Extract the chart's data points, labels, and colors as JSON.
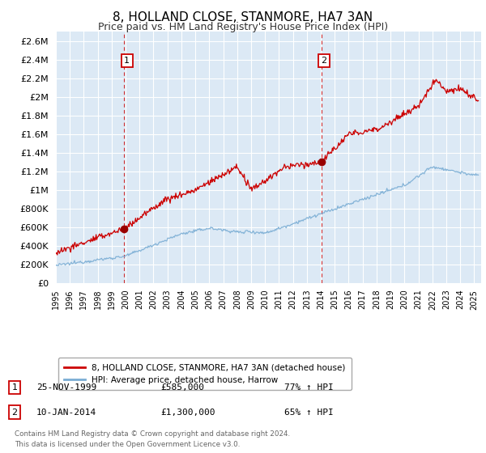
{
  "title": "8, HOLLAND CLOSE, STANMORE, HA7 3AN",
  "subtitle": "Price paid vs. HM Land Registry's House Price Index (HPI)",
  "title_fontsize": 11,
  "subtitle_fontsize": 9,
  "ylim": [
    0,
    2700000
  ],
  "xlim_start": 1995.0,
  "xlim_end": 2025.5,
  "background_color": "#ffffff",
  "plot_bg_color": "#dce9f5",
  "grid_color": "#ffffff",
  "sale1_date": 1999.9,
  "sale1_value": 585000,
  "sale2_date": 2014.03,
  "sale2_value": 1300000,
  "legend_label_red": "8, HOLLAND CLOSE, STANMORE, HA7 3AN (detached house)",
  "legend_label_blue": "HPI: Average price, detached house, Harrow",
  "annotation1_label": "1",
  "annotation1_date": "25-NOV-1999",
  "annotation1_price": "£585,000",
  "annotation1_hpi": "77% ↑ HPI",
  "annotation2_label": "2",
  "annotation2_date": "10-JAN-2014",
  "annotation2_price": "£1,300,000",
  "annotation2_hpi": "65% ↑ HPI",
  "footer1": "Contains HM Land Registry data © Crown copyright and database right 2024.",
  "footer2": "This data is licensed under the Open Government Licence v3.0.",
  "red_line_color": "#cc0000",
  "blue_line_color": "#7aadd4",
  "marker_color": "#990000",
  "dashed_vline_color": "#cc0000",
  "yticks": [
    0,
    200000,
    400000,
    600000,
    800000,
    1000000,
    1200000,
    1400000,
    1600000,
    1800000,
    2000000,
    2200000,
    2400000,
    2600000
  ]
}
